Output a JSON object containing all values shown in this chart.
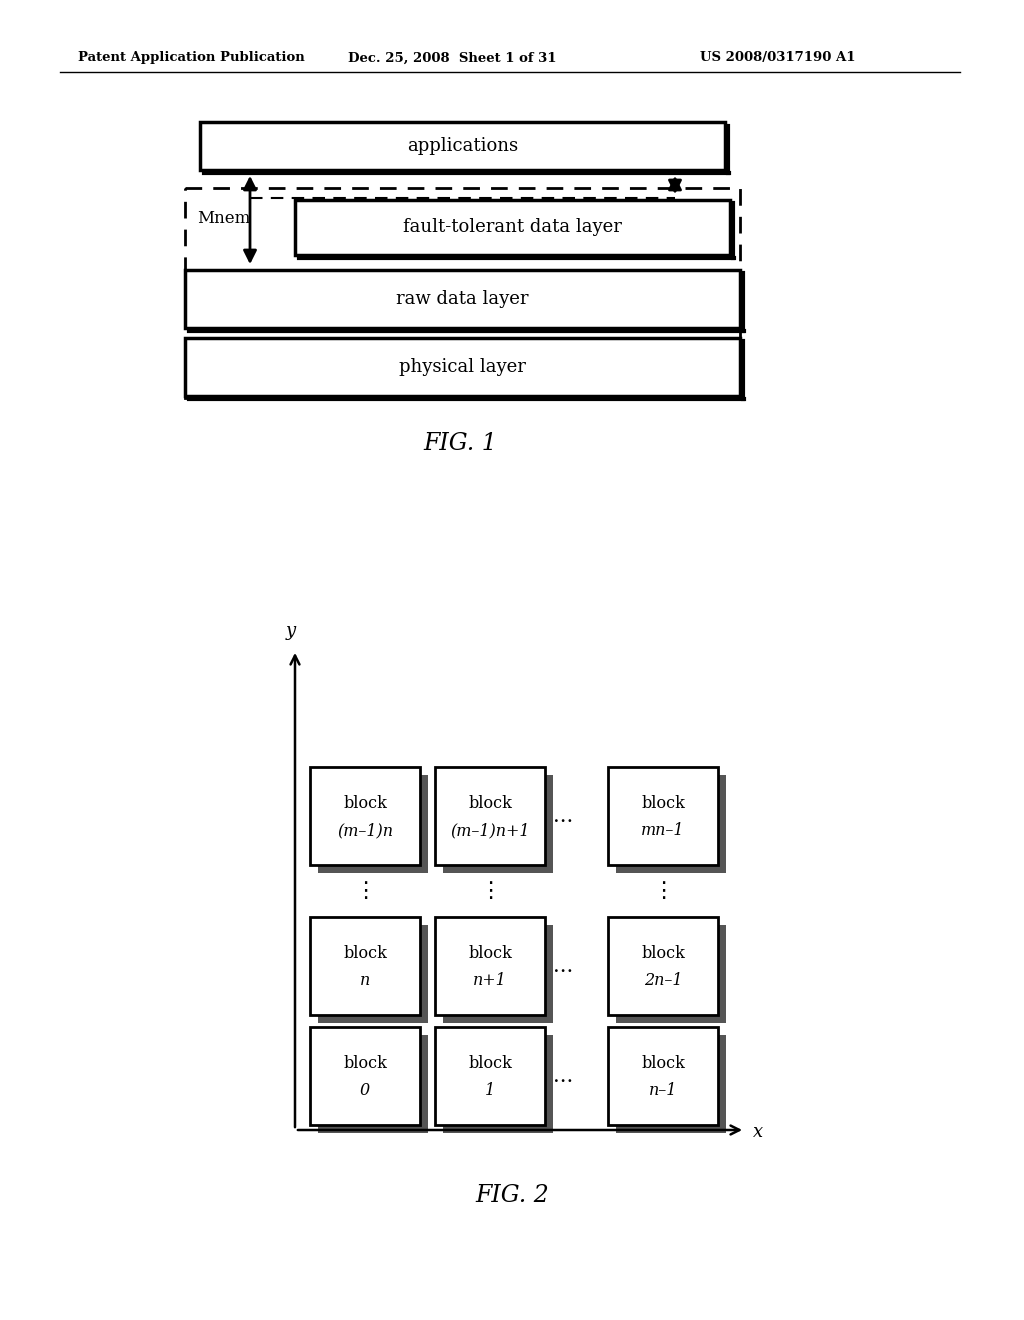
{
  "header_left": "Patent Application Publication",
  "header_mid": "Dec. 25, 2008  Sheet 1 of 31",
  "header_right": "US 2008/0317190 A1",
  "fig1_label": "FIG. 1",
  "fig2_label": "FIG. 2",
  "fig1_layers": [
    "applications",
    "fault-tolerant data layer",
    "raw data layer",
    "physical layer"
  ],
  "fig1_mnem": "Mnem",
  "bg_color": "#ffffff",
  "text_color": "#000000"
}
